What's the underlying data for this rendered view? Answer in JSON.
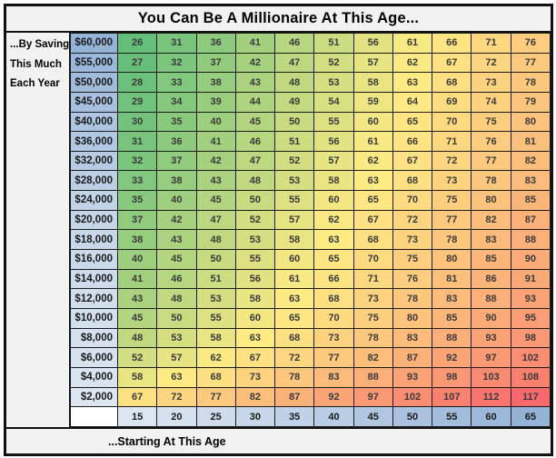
{
  "title": "You Can Be A Millionaire At This Age...",
  "left_label_lines": [
    "...By Saving",
    "This Much",
    "Each Year"
  ],
  "footer": "...Starting At This Age",
  "chart_data": {
    "type": "heatmap",
    "title": "You Can Be A Millionaire At This Age...",
    "row_axis_label": "...By Saving This Much Each Year",
    "col_axis_label": "...Starting At This Age",
    "row_labels": [
      "$60,000",
      "$55,000",
      "$50,000",
      "$45,000",
      "$40,000",
      "$36,000",
      "$32,000",
      "$28,000",
      "$24,000",
      "$20,000",
      "$18,000",
      "$16,000",
      "$14,000",
      "$12,000",
      "$10,000",
      "$8,000",
      "$6,000",
      "$4,000",
      "$2,000"
    ],
    "row_values": [
      60000,
      55000,
      50000,
      45000,
      40000,
      36000,
      32000,
      28000,
      24000,
      20000,
      18000,
      16000,
      14000,
      12000,
      10000,
      8000,
      6000,
      4000,
      2000
    ],
    "columns": [
      15,
      20,
      25,
      30,
      35,
      40,
      45,
      50,
      55,
      60,
      65
    ],
    "values": [
      [
        26,
        31,
        36,
        41,
        46,
        51,
        56,
        61,
        66,
        71,
        76
      ],
      [
        27,
        32,
        37,
        42,
        47,
        52,
        57,
        62,
        67,
        72,
        77
      ],
      [
        28,
        33,
        38,
        43,
        48,
        53,
        58,
        63,
        68,
        73,
        78
      ],
      [
        29,
        34,
        39,
        44,
        49,
        54,
        59,
        64,
        69,
        74,
        79
      ],
      [
        30,
        35,
        40,
        45,
        50,
        55,
        60,
        65,
        70,
        75,
        80
      ],
      [
        31,
        36,
        41,
        46,
        51,
        56,
        61,
        66,
        71,
        76,
        81
      ],
      [
        32,
        37,
        42,
        47,
        52,
        57,
        62,
        67,
        72,
        77,
        82
      ],
      [
        33,
        38,
        43,
        48,
        53,
        58,
        63,
        68,
        73,
        78,
        83
      ],
      [
        35,
        40,
        45,
        50,
        55,
        60,
        65,
        70,
        75,
        80,
        85
      ],
      [
        37,
        42,
        47,
        52,
        57,
        62,
        67,
        72,
        77,
        82,
        87
      ],
      [
        38,
        43,
        48,
        53,
        58,
        63,
        68,
        73,
        78,
        83,
        88
      ],
      [
        40,
        45,
        50,
        55,
        60,
        65,
        70,
        75,
        80,
        85,
        90
      ],
      [
        41,
        46,
        51,
        56,
        61,
        66,
        71,
        76,
        81,
        86,
        91
      ],
      [
        43,
        48,
        53,
        58,
        63,
        68,
        73,
        78,
        83,
        88,
        93
      ],
      [
        45,
        50,
        55,
        60,
        65,
        70,
        75,
        80,
        85,
        90,
        95
      ],
      [
        48,
        53,
        58,
        63,
        68,
        73,
        78,
        83,
        88,
        93,
        98
      ],
      [
        52,
        57,
        62,
        67,
        72,
        77,
        82,
        87,
        92,
        97,
        102
      ],
      [
        58,
        63,
        68,
        73,
        78,
        83,
        88,
        93,
        98,
        103,
        108
      ],
      [
        67,
        72,
        77,
        82,
        87,
        92,
        97,
        102,
        107,
        112,
        117
      ]
    ],
    "color_scale": {
      "type": "3-color",
      "min_value": 26,
      "mid_value": 63,
      "max_value": 117,
      "min_color": "#63BE7B",
      "mid_color": "#FFEB84",
      "max_color": "#F8696B"
    },
    "header_color_scale": {
      "light_color": "#DCE6F1",
      "dark_color": "#95B3D7"
    },
    "panel_color": "#F2F2F2",
    "grid_on": true
  }
}
